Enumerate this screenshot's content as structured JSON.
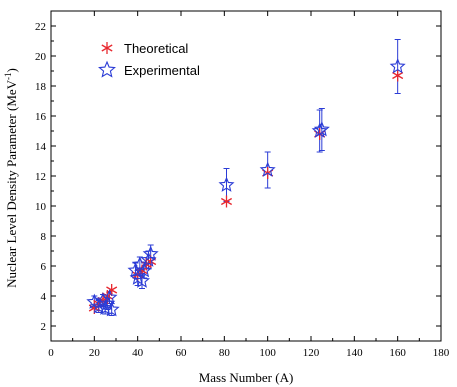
{
  "chart_data": {
    "type": "scatter",
    "xlabel": "Mass Number (A)",
    "ylabel_main": "Nuclear Level Density Parameter (MeV",
    "ylabel_sup": "-1",
    "ylabel_close": ")",
    "xlim": [
      0,
      180
    ],
    "ylim": [
      1,
      23
    ],
    "x_ticks": [
      0,
      20,
      40,
      60,
      80,
      100,
      120,
      140,
      160,
      180
    ],
    "y_ticks": [
      2,
      4,
      6,
      8,
      10,
      12,
      14,
      16,
      18,
      20,
      22
    ],
    "x_tick_labels": [
      "0",
      "20",
      "40",
      "60",
      "80",
      "100",
      "120",
      "140",
      "160",
      "180"
    ],
    "y_tick_labels": [
      "2",
      "4",
      "6",
      "8",
      "10",
      "12",
      "14",
      "16",
      "18",
      "20",
      "22"
    ],
    "grid": false,
    "legend_position": "top-left",
    "series": [
      {
        "name": "Theoretical",
        "color": "#e8282f",
        "marker": "asterisk",
        "points": [
          {
            "x": 20,
            "y": 3.2
          },
          {
            "x": 22,
            "y": 3.5
          },
          {
            "x": 24,
            "y": 3.7
          },
          {
            "x": 26,
            "y": 4.0
          },
          {
            "x": 28,
            "y": 4.4
          },
          {
            "x": 40,
            "y": 5.4
          },
          {
            "x": 42,
            "y": 5.7
          },
          {
            "x": 44,
            "y": 6.1
          },
          {
            "x": 46,
            "y": 6.3
          },
          {
            "x": 81,
            "y": 10.3
          },
          {
            "x": 100,
            "y": 12.2
          },
          {
            "x": 124,
            "y": 14.8
          },
          {
            "x": 160,
            "y": 18.7
          }
        ]
      },
      {
        "name": "Experimental",
        "color": "#2b3cd6",
        "marker": "star",
        "points": [
          {
            "x": 20,
            "y": 3.6,
            "err": 0.4
          },
          {
            "x": 22,
            "y": 3.3,
            "err": 0.4
          },
          {
            "x": 24,
            "y": 3.7,
            "err": 0.4
          },
          {
            "x": 25,
            "y": 3.2,
            "err": 0.4
          },
          {
            "x": 26,
            "y": 3.5,
            "err": 0.4
          },
          {
            "x": 27,
            "y": 3.9,
            "err": 0.4
          },
          {
            "x": 28,
            "y": 3.1,
            "err": 0.4
          },
          {
            "x": 39,
            "y": 5.7,
            "err": 0.5
          },
          {
            "x": 40,
            "y": 5.2,
            "err": 0.5
          },
          {
            "x": 41,
            "y": 6.1,
            "err": 0.5
          },
          {
            "x": 42,
            "y": 5.0,
            "err": 0.5
          },
          {
            "x": 43,
            "y": 5.7,
            "err": 0.5
          },
          {
            "x": 45,
            "y": 6.4,
            "err": 0.6
          },
          {
            "x": 46,
            "y": 6.8,
            "err": 0.6
          },
          {
            "x": 81,
            "y": 11.4,
            "err": 1.1
          },
          {
            "x": 100,
            "y": 12.4,
            "err": 1.2
          },
          {
            "x": 124,
            "y": 15.0,
            "err": 1.4
          },
          {
            "x": 125,
            "y": 15.1,
            "err": 1.4
          },
          {
            "x": 160,
            "y": 19.3,
            "err": 1.8
          }
        ]
      }
    ]
  }
}
